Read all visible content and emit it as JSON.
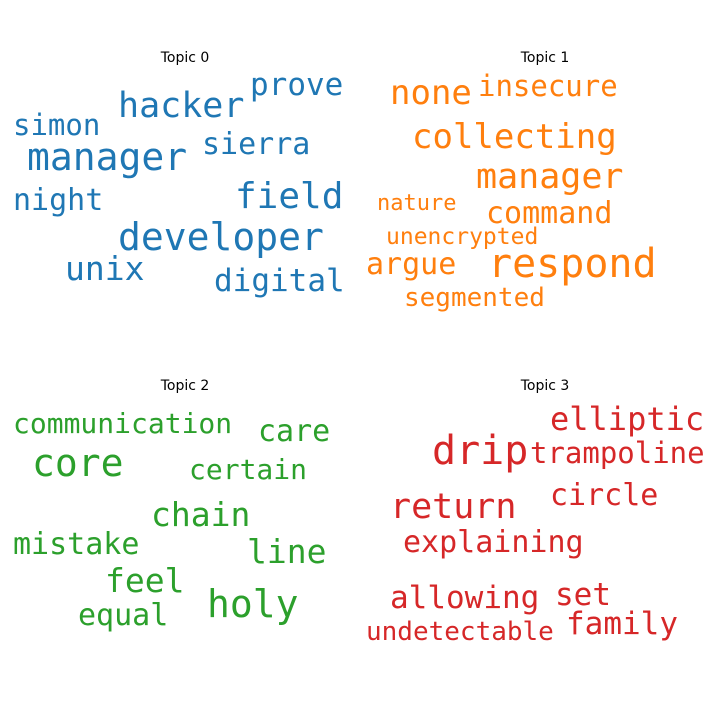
{
  "panels": [
    {
      "title": "Topic 0",
      "color": "#1f77b4",
      "words": [
        "prove",
        "hacker",
        "simon",
        "manager",
        "sierra",
        "night",
        "field",
        "developer",
        "unix",
        "digital"
      ]
    },
    {
      "title": "Topic 1",
      "color": "#ff7f0e",
      "words": [
        "none",
        "insecure",
        "collecting",
        "manager",
        "nature",
        "command",
        "unencrypted",
        "argue",
        "respond",
        "segmented"
      ]
    },
    {
      "title": "Topic 2",
      "color": "#2ca02c",
      "words": [
        "communication",
        "care",
        "core",
        "certain",
        "chain",
        "mistake",
        "line",
        "feel",
        "holy",
        "equal"
      ]
    },
    {
      "title": "Topic 3",
      "color": "#d62728",
      "words": [
        "elliptic",
        "drip",
        "trampoline",
        "circle",
        "return",
        "explaining",
        "allowing",
        "set",
        "family",
        "undetectable"
      ]
    }
  ]
}
